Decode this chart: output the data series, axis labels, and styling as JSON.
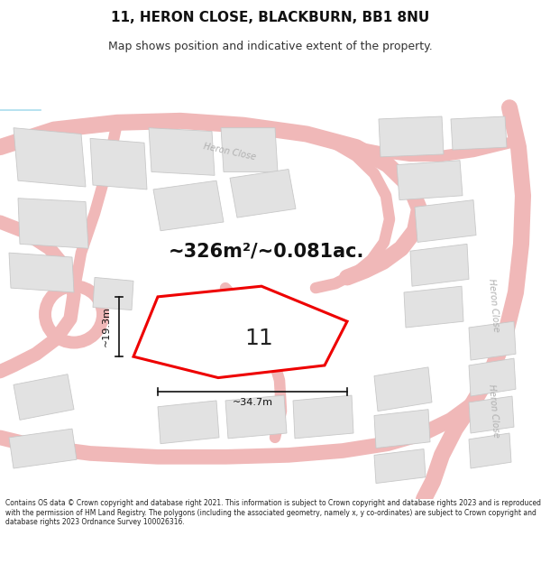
{
  "title": "11, HERON CLOSE, BLACKBURN, BB1 8NU",
  "subtitle": "Map shows position and indicative extent of the property.",
  "area_text": "~326m²/~0.081ac.",
  "plot_label": "11",
  "dim_horizontal": "~34.7m",
  "dim_vertical": "~19.3m",
  "footer": "Contains OS data © Crown copyright and database right 2021. This information is subject to Crown copyright and database rights 2023 and is reproduced with the permission of HM Land Registry. The polygons (including the associated geometry, namely x, y co-ordinates) are subject to Crown copyright and database rights 2023 Ordnance Survey 100026316.",
  "bg_color": "#ffffff",
  "map_bg": "#f7f7f7",
  "plot_color": "#ee0000",
  "plot_fill": "#ffffff",
  "road_color": "#f0b8b8",
  "building_color": "#e2e2e2",
  "building_edge": "#c8c8c8",
  "road_label_color": "#b0b0b0",
  "dim_color": "#111111",
  "area_color": "#111111",
  "title_fontsize": 11,
  "subtitle_fontsize": 9,
  "area_fontsize": 15,
  "dim_fontsize": 8,
  "plot_label_fontsize": 18,
  "road_label_fontsize": 7
}
